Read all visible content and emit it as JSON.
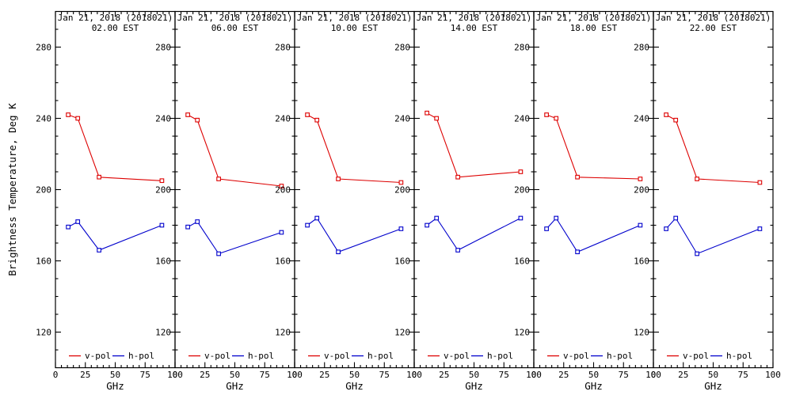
{
  "figure": {
    "background": "#ffffff",
    "axis_color": "#000000",
    "text_color": "#000000"
  },
  "chart_data": {
    "type": "line",
    "description": "Six-panel time series of microwave brightness temperature spectra, v-pol and h-pol",
    "xlabel": "GHz",
    "ylabel": "Brightness Temperature, Deg K",
    "x": [
      10.65,
      18.7,
      36.5,
      89
    ],
    "xlim": [
      0,
      100
    ],
    "ylim": [
      100,
      300
    ],
    "x_major_ticks": [
      0,
      25,
      50,
      75,
      100
    ],
    "x_minor_step": 5,
    "y_major_ticks": [
      120,
      160,
      200,
      240,
      280
    ],
    "y_minor_step": 10,
    "grid": false,
    "legend": {
      "position": "bottom-inside-each-panel",
      "entries": [
        {
          "label": "v-pol",
          "color": "#dd0000"
        },
        {
          "label": "h-pol",
          "color": "#0000cc"
        }
      ]
    },
    "panels": [
      {
        "title": "Jan 21, 2018 (2018021)",
        "subtitle": "02.00 EST",
        "series": [
          {
            "name": "v-pol",
            "color": "#dd0000",
            "values": [
              242,
              240,
              207,
              205
            ]
          },
          {
            "name": "h-pol",
            "color": "#0000cc",
            "values": [
              179,
              182,
              166,
              180
            ]
          }
        ]
      },
      {
        "title": "Jan 21, 2018 (2018021)",
        "subtitle": "06.00 EST",
        "series": [
          {
            "name": "v-pol",
            "color": "#dd0000",
            "values": [
              242,
              239,
              206,
              202
            ]
          },
          {
            "name": "h-pol",
            "color": "#0000cc",
            "values": [
              179,
              182,
              164,
              176
            ]
          }
        ]
      },
      {
        "title": "Jan 21, 2018 (2018021)",
        "subtitle": "10.00 EST",
        "series": [
          {
            "name": "v-pol",
            "color": "#dd0000",
            "values": [
              242,
              239,
              206,
              204
            ]
          },
          {
            "name": "h-pol",
            "color": "#0000cc",
            "values": [
              180,
              184,
              165,
              178
            ]
          }
        ]
      },
      {
        "title": "Jan 21, 2018 (2018021)",
        "subtitle": "14.00 EST",
        "series": [
          {
            "name": "v-pol",
            "color": "#dd0000",
            "values": [
              243,
              240,
              207,
              210
            ]
          },
          {
            "name": "h-pol",
            "color": "#0000cc",
            "values": [
              180,
              184,
              166,
              184
            ]
          }
        ]
      },
      {
        "title": "Jan 21, 2018 (2018021)",
        "subtitle": "18.00 EST",
        "series": [
          {
            "name": "v-pol",
            "color": "#dd0000",
            "values": [
              242,
              240,
              207,
              206
            ]
          },
          {
            "name": "h-pol",
            "color": "#0000cc",
            "values": [
              178,
              184,
              165,
              180
            ]
          }
        ]
      },
      {
        "title": "Jan 21, 2018 (2018021)",
        "subtitle": "22.00 EST",
        "series": [
          {
            "name": "v-pol",
            "color": "#dd0000",
            "values": [
              242,
              239,
              206,
              204
            ]
          },
          {
            "name": "h-pol",
            "color": "#0000cc",
            "values": [
              178,
              184,
              164,
              178
            ]
          }
        ]
      }
    ]
  }
}
